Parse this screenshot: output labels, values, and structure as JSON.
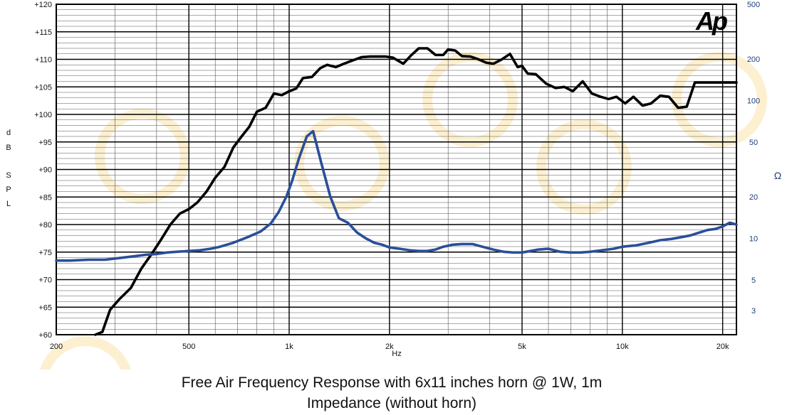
{
  "chart_data": {
    "type": "line",
    "title": "Free Air Frequency Response with 6x11 inches horn @ 1W, 1m",
    "subtitle": "Impedance (without horn)",
    "xscale": "log",
    "xlim": [
      200,
      22000
    ],
    "ylim": [
      60,
      120
    ],
    "y2lim": [
      2,
      500
    ],
    "y2scale": "log",
    "grid": true,
    "xlabel": "Hz",
    "ylabel_letters": [
      "d",
      "B",
      "S",
      "P",
      "L"
    ],
    "y2label": "Ω",
    "x_ticks": [
      "200",
      "500",
      "1k",
      "2k",
      "5k",
      "10k",
      "20k"
    ],
    "x_tick_values": [
      200,
      500,
      1000,
      2000,
      5000,
      10000,
      20000
    ],
    "y_ticks": [
      "+60",
      "+65",
      "+70",
      "+75",
      "+80",
      "+85",
      "+90",
      "+95",
      "+100",
      "+105",
      "+110",
      "+115",
      "+120"
    ],
    "y_tick_values": [
      60,
      65,
      70,
      75,
      80,
      85,
      90,
      95,
      100,
      105,
      110,
      115,
      120
    ],
    "y2_ticks": [
      "3",
      "5",
      "10",
      "20",
      "50",
      "100",
      "200",
      "500"
    ],
    "y2_tick_values": [
      3,
      5,
      10,
      20,
      50,
      100,
      200,
      500
    ],
    "logo": "Ap",
    "colors": {
      "spl": "#000000",
      "impedance": "#2a4e9a",
      "grid": "#222222",
      "right_axis": "#1f3f7a"
    },
    "series": [
      {
        "axis": "left",
        "x": [
          262,
          275,
          290,
          310,
          335,
          360,
          385,
          410,
          440,
          470,
          500,
          530,
          565,
          600,
          640,
          680,
          720,
          760,
          800,
          850,
          900,
          950,
          1000,
          1050,
          1100,
          1170,
          1240,
          1300,
          1380,
          1460,
          1550,
          1650,
          1750,
          1850,
          1950,
          2050,
          2200,
          2320,
          2450,
          2600,
          2750,
          2900,
          3000,
          3150,
          3300,
          3500,
          3700,
          3900,
          4100,
          4350,
          4600,
          4850,
          5000,
          5200,
          5500,
          5900,
          6300,
          6700,
          7100,
          7600,
          8100,
          8600,
          9100,
          9600,
          10200,
          10800,
          11500,
          12200,
          13000,
          13800,
          14700,
          15600,
          16500,
          17500,
          18500,
          19500,
          20500,
          21500,
          22000
        ],
        "values": [
          60,
          60.5,
          64.5,
          66.5,
          68.5,
          72,
          74.5,
          77,
          80,
          82,
          82.8,
          84,
          86,
          88.5,
          90.5,
          94,
          96,
          97.8,
          100.5,
          101.2,
          103.8,
          103.5,
          104.2,
          104.7,
          106.6,
          106.8,
          108.4,
          109,
          108.6,
          109.2,
          109.8,
          110.4,
          110.5,
          110.5,
          110.5,
          110.3,
          109.2,
          110.7,
          112,
          112,
          110.8,
          110.8,
          111.8,
          111.6,
          110.6,
          110.5,
          110,
          109.4,
          109.2,
          110,
          111,
          108.6,
          108.8,
          107.4,
          107.3,
          105.6,
          104.8,
          105,
          104.2,
          106,
          103.8,
          103.2,
          102.8,
          103.2,
          102,
          103.2,
          101.6,
          102,
          103.4,
          103.2,
          101.2,
          101.4,
          105.8,
          105.8,
          105.8,
          105.8,
          105.8,
          105.8,
          105.8
        ]
      },
      {
        "axis": "right",
        "x": [
          200,
          220,
          250,
          280,
          310,
          340,
          370,
          400,
          430,
          460,
          500,
          540,
          580,
          620,
          680,
          750,
          820,
          880,
          930,
          980,
          1020,
          1070,
          1130,
          1180,
          1250,
          1330,
          1410,
          1500,
          1600,
          1700,
          1800,
          1900,
          2000,
          2150,
          2300,
          2450,
          2600,
          2750,
          2900,
          3100,
          3300,
          3550,
          3800,
          4100,
          4400,
          4700,
          5000,
          5300,
          5600,
          6000,
          6500,
          7000,
          7500,
          8000,
          8700,
          9400,
          10000,
          11000,
          12000,
          13000,
          14000,
          15000,
          16000,
          17000,
          18000,
          19000,
          20000,
          21000,
          22000
        ],
        "values": [
          6.9,
          6.9,
          7.0,
          7.0,
          7.2,
          7.4,
          7.6,
          7.7,
          7.9,
          8.0,
          8.1,
          8.2,
          8.4,
          8.7,
          9.3,
          10.2,
          11.2,
          12.8,
          15.5,
          20,
          26,
          38,
          55,
          60,
          35,
          20,
          14,
          13,
          11,
          10,
          9.3,
          9.0,
          8.6,
          8.4,
          8.2,
          8.1,
          8.1,
          8.3,
          8.7,
          9.0,
          9.1,
          9.1,
          8.7,
          8.3,
          8.0,
          7.9,
          7.9,
          8.1,
          8.3,
          8.4,
          8.0,
          7.9,
          7.9,
          8.0,
          8.2,
          8.4,
          8.7,
          8.9,
          9.3,
          9.7,
          9.9,
          10.2,
          10.5,
          11.0,
          11.5,
          11.7,
          12.2,
          13.0,
          12.6
        ]
      }
    ]
  }
}
